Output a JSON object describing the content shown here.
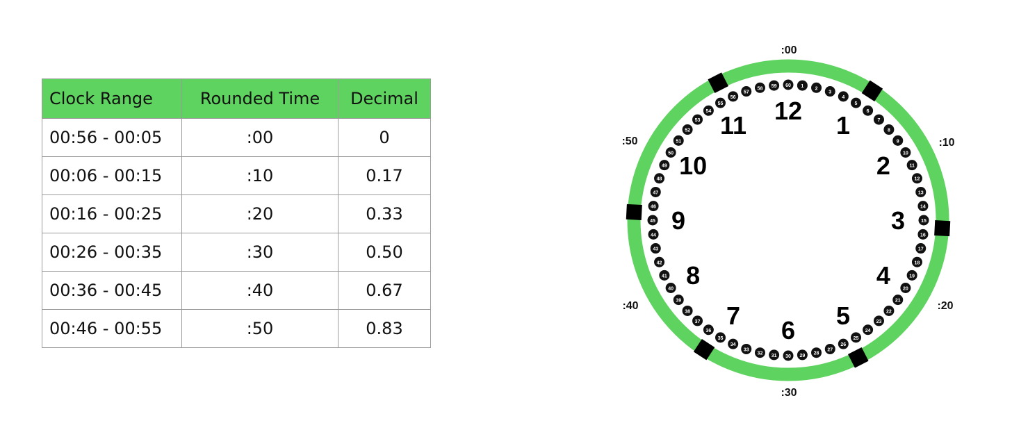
{
  "table": {
    "headers": [
      "Clock Range",
      "Rounded Time",
      "Decimal"
    ],
    "rows": [
      [
        "00:56 - 00:05",
        ":00",
        "0"
      ],
      [
        "00:06 - 00:15",
        ":10",
        "0.17"
      ],
      [
        "00:16 - 00:25",
        ":20",
        "0.33"
      ],
      [
        "00:26 - 00:35",
        ":30",
        "0.50"
      ],
      [
        "00:36 - 00:45",
        ":40",
        "0.67"
      ],
      [
        "00:46 - 00:55",
        ":50",
        "0.83"
      ]
    ]
  },
  "clock": {
    "ring_color": "#5fd35f",
    "segment_labels": [
      ":00",
      ":10",
      ":20",
      ":30",
      ":40",
      ":50"
    ],
    "hour_labels": [
      "12",
      "1",
      "2",
      "3",
      "4",
      "5",
      "6",
      "7",
      "8",
      "9",
      "10",
      "11"
    ],
    "minute_labels": [
      "60",
      "1",
      "2",
      "3",
      "4",
      "5",
      "6",
      "7",
      "8",
      "9",
      "10",
      "11",
      "12",
      "13",
      "14",
      "15",
      "16",
      "17",
      "18",
      "19",
      "20",
      "21",
      "22",
      "23",
      "24",
      "25",
      "26",
      "27",
      "28",
      "29",
      "30",
      "31",
      "32",
      "33",
      "34",
      "35",
      "36",
      "37",
      "38",
      "39",
      "40",
      "41",
      "42",
      "43",
      "44",
      "45",
      "46",
      "47",
      "48",
      "49",
      "50",
      "51",
      "52",
      "53",
      "54",
      "55",
      "56",
      "57",
      "58",
      "59"
    ]
  }
}
